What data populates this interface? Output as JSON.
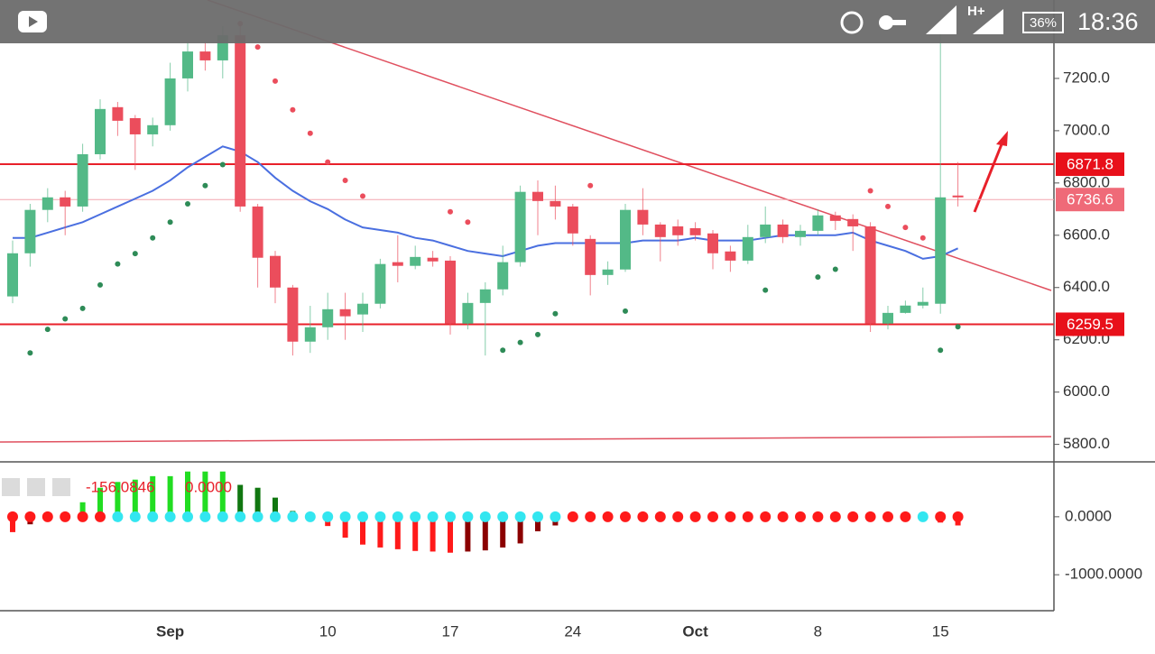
{
  "status_bar": {
    "network": "H+",
    "battery": "36%",
    "time": "18:36"
  },
  "chart_data": {
    "type": "candlestick",
    "categories": [
      null,
      null,
      null,
      null,
      null,
      null,
      null,
      null,
      null,
      "Sep",
      null,
      null,
      null,
      null,
      null,
      null,
      null,
      null,
      "10",
      null,
      null,
      null,
      null,
      null,
      null,
      "17",
      null,
      null,
      null,
      null,
      null,
      null,
      "24",
      null,
      null,
      null,
      null,
      null,
      null,
      "Oct",
      null,
      null,
      null,
      null,
      null,
      null,
      "8",
      null,
      null,
      null,
      null,
      null,
      null,
      "15",
      null
    ],
    "open": [
      6366,
      6531,
      6697,
      6745,
      6710,
      6910,
      7090,
      7048,
      6986,
      7021,
      7200,
      7303,
      7269,
      7365,
      6710,
      6521,
      6400,
      6193,
      6248,
      6317,
      6297,
      6338,
      6497,
      6483,
      6514,
      6503,
      6262,
      6341,
      6393,
      6497,
      6766,
      6731,
      6710,
      6586,
      6448,
      6469,
      6697,
      6641,
      6634,
      6627,
      6607,
      6538,
      6503,
      6593,
      6641,
      6593,
      6617,
      6676,
      6662,
      6634,
      6262,
      6303,
      6331,
      6338,
      6752
    ],
    "high": [
      6580,
      6720,
      6780,
      6770,
      6950,
      7120,
      7110,
      7060,
      7050,
      7260,
      7340,
      7340,
      7400,
      7400,
      6720,
      6540,
      6410,
      6330,
      6380,
      6380,
      6380,
      6510,
      6600,
      6560,
      6540,
      6520,
      6380,
      6420,
      6560,
      6790,
      6810,
      6790,
      6720,
      6600,
      6500,
      6720,
      6780,
      6650,
      6660,
      6650,
      6620,
      6560,
      6640,
      6710,
      6660,
      6640,
      6700,
      6690,
      6680,
      6650,
      6330,
      6350,
      6400,
      7370,
      6880
    ],
    "low": [
      6340,
      6480,
      6650,
      6600,
      6690,
      6890,
      6980,
      6850,
      6940,
      7000,
      7150,
      7230,
      7200,
      6690,
      6400,
      6340,
      6140,
      6150,
      6200,
      6200,
      6230,
      6320,
      6420,
      6470,
      6480,
      6220,
      6240,
      6140,
      6370,
      6480,
      6600,
      6660,
      6560,
      6370,
      6410,
      6460,
      6600,
      6500,
      6560,
      6580,
      6470,
      6460,
      6490,
      6570,
      6570,
      6560,
      6600,
      6620,
      6540,
      6230,
      6240,
      6300,
      6320,
      6300,
      6710
    ],
    "close": [
      6531,
      6697,
      6745,
      6710,
      6910,
      7083,
      7038,
      6986,
      7021,
      7200,
      7303,
      7269,
      7365,
      6710,
      6514,
      6400,
      6193,
      6248,
      6317,
      6290,
      6338,
      6490,
      6483,
      6517,
      6500,
      6262,
      6341,
      6393,
      6497,
      6766,
      6731,
      6710,
      6607,
      6448,
      6469,
      6697,
      6641,
      6593,
      6600,
      6600,
      6531,
      6503,
      6593,
      6641,
      6593,
      6617,
      6676,
      6655,
      6634,
      6262,
      6303,
      6331,
      6345,
      6745,
      6745
    ],
    "ma": [
      6590,
      6590,
      6610,
      6630,
      6650,
      6680,
      6710,
      6740,
      6770,
      6810,
      6860,
      6900,
      6940,
      6920,
      6880,
      6820,
      6770,
      6730,
      6700,
      6660,
      6630,
      6620,
      6610,
      6590,
      6580,
      6560,
      6540,
      6530,
      6520,
      6540,
      6560,
      6570,
      6570,
      6570,
      6570,
      6570,
      6580,
      6580,
      6580,
      6590,
      6580,
      6580,
      6580,
      6590,
      6600,
      6600,
      6600,
      6600,
      6610,
      6580,
      6560,
      6540,
      6510,
      6520,
      6550
    ],
    "sar": [
      null,
      6150,
      6240,
      6280,
      6320,
      6410,
      6490,
      6530,
      6590,
      6650,
      6720,
      6790,
      6870,
      7410,
      7320,
      7190,
      7080,
      6990,
      6880,
      6810,
      6750,
      null,
      null,
      null,
      null,
      6690,
      6650,
      null,
      6160,
      6190,
      6220,
      6300,
      null,
      6790,
      null,
      6310,
      null,
      null,
      null,
      null,
      null,
      null,
      null,
      6390,
      null,
      null,
      6440,
      6470,
      null,
      6770,
      6710,
      6630,
      6590,
      6160,
      6250
    ],
    "up_color": "#53b987",
    "down_color": "#eb4d5c",
    "ma_color": "#4a6fe0",
    "sar_color": "#2e8b57",
    "price_lines": [
      6871.8,
      6259.5
    ],
    "last_price": 6736.6,
    "ylim": [
      5740,
      7500
    ],
    "yticks": [
      {
        "value": 5800,
        "label": "5800.0"
      },
      {
        "value": 6000,
        "label": "6000.0"
      },
      {
        "value": 6200,
        "label": "6200.0"
      },
      {
        "value": 6400,
        "label": "6400.0"
      },
      {
        "value": 6600,
        "label": "6600.0"
      },
      {
        "value": 6800,
        "label": "6800.0"
      },
      {
        "value": 7000,
        "label": "7000.0"
      },
      {
        "value": 7200,
        "label": "7200.0"
      }
    ],
    "indicator": {
      "values": [
        -265,
        -130,
        0,
        0,
        250,
        500,
        600,
        640,
        700,
        700,
        780,
        780,
        780,
        550,
        500,
        330,
        100,
        0,
        -160,
        -360,
        -480,
        -530,
        -560,
        -590,
        -600,
        -620,
        -600,
        -580,
        -530,
        -460,
        -250,
        -150,
        0,
        0,
        0,
        0,
        0,
        50,
        50,
        0,
        50,
        50,
        50,
        50,
        50,
        50,
        50,
        0,
        0,
        0,
        0,
        0,
        0,
        -100,
        -150
      ],
      "dot_colors": [
        "#ff1a1a",
        "#ff1a1a",
        "#ff1a1a",
        "#ff1a1a",
        "#ff1a1a",
        "#ff1a1a",
        "#33e6f0",
        "#33e6f0",
        "#33e6f0",
        "#33e6f0",
        "#33e6f0",
        "#33e6f0",
        "#33e6f0",
        "#33e6f0",
        "#33e6f0",
        "#33e6f0",
        "#33e6f0",
        "#33e6f0",
        "#33e6f0",
        "#33e6f0",
        "#33e6f0",
        "#33e6f0",
        "#33e6f0",
        "#33e6f0",
        "#33e6f0",
        "#33e6f0",
        "#33e6f0",
        "#33e6f0",
        "#33e6f0",
        "#33e6f0",
        "#33e6f0",
        "#33e6f0",
        "#ff1a1a",
        "#ff1a1a",
        "#ff1a1a",
        "#ff1a1a",
        "#ff1a1a",
        "#ff1a1a",
        "#ff1a1a",
        "#ff1a1a",
        "#ff1a1a",
        "#ff1a1a",
        "#ff1a1a",
        "#ff1a1a",
        "#ff1a1a",
        "#ff1a1a",
        "#ff1a1a",
        "#ff1a1a",
        "#ff1a1a",
        "#ff1a1a",
        "#ff1a1a",
        "#ff1a1a",
        "#33e6f0",
        "#ff1a1a",
        "#ff1a1a"
      ],
      "readout": [
        "-156.0846",
        "0.0000"
      ],
      "ylim": [
        -1620,
        900
      ],
      "yticks": [
        {
          "value": 0,
          "label": "0.0000"
        },
        {
          "value": -1000,
          "label": "-1000.0000"
        }
      ]
    }
  }
}
